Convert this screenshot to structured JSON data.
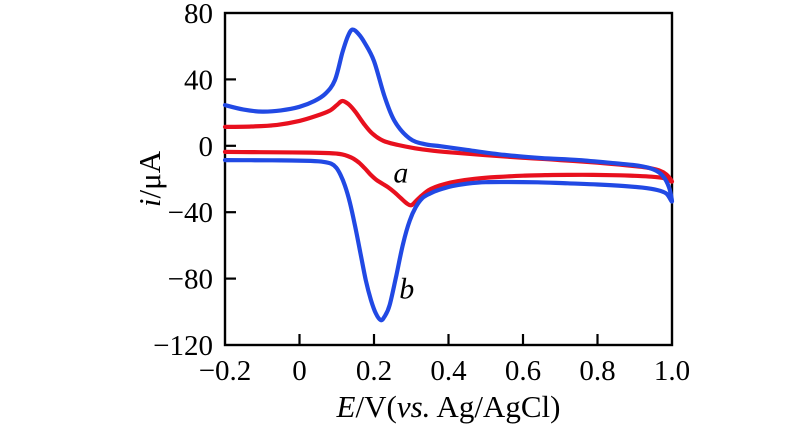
{
  "figure": {
    "background": "#ffffff",
    "frame_color": "#000000"
  },
  "chart_data": {
    "type": "line",
    "subtype": "cyclic-voltammogram",
    "title": "",
    "xlabel": "E/V(vs. Ag/AgCl)",
    "xlabel_parts": [
      {
        "text": "E",
        "italic": true
      },
      {
        "text": "/V(",
        "italic": false
      },
      {
        "text": "vs.",
        "italic": true
      },
      {
        "text": " Ag/AgCl)",
        "italic": false
      }
    ],
    "ylabel": "i/μA",
    "ylabel_parts": [
      {
        "text": "i",
        "italic": true
      },
      {
        "text": "/μA",
        "italic": false
      }
    ],
    "xlim": [
      -0.2,
      1.0
    ],
    "ylim": [
      -120,
      80
    ],
    "grid": false,
    "legend": "none",
    "x_ticks": [
      {
        "v": -0.2,
        "label": "−0.2"
      },
      {
        "v": 0,
        "label": "0"
      },
      {
        "v": 0.2,
        "label": "0.2"
      },
      {
        "v": 0.4,
        "label": "0.4"
      },
      {
        "v": 0.6,
        "label": "0.6"
      },
      {
        "v": 0.8,
        "label": "0.8"
      },
      {
        "v": 1.0,
        "label": "1.0"
      }
    ],
    "y_ticks": [
      {
        "v": 80,
        "label": "80"
      },
      {
        "v": 40,
        "label": "40"
      },
      {
        "v": 0,
        "label": "0"
      },
      {
        "v": -40,
        "label": "−40"
      },
      {
        "v": -80,
        "label": "−80"
      },
      {
        "v": -120,
        "label": "−120"
      }
    ],
    "series": [
      {
        "name": "a",
        "color": "#e8101e",
        "line_width": 4.2,
        "annotation": {
          "text": "a",
          "E": 0.272,
          "i": -16
        },
        "anodic_peak": {
          "E": 0.115,
          "i": 27
        },
        "cathodic_peak": {
          "E": 0.3,
          "i": -36
        },
        "forward": [
          [
            -0.2,
            11.4
          ],
          [
            -0.13,
            11.6
          ],
          [
            -0.06,
            12.6
          ],
          [
            0.0,
            15.0
          ],
          [
            0.045,
            18.0
          ],
          [
            0.08,
            21.0
          ],
          [
            0.1,
            24.5
          ],
          [
            0.115,
            27.0
          ],
          [
            0.132,
            25.0
          ],
          [
            0.15,
            20.5
          ],
          [
            0.172,
            13.5
          ],
          [
            0.195,
            7.5
          ],
          [
            0.225,
            3.0
          ],
          [
            0.265,
            0.5
          ],
          [
            0.31,
            -1.5
          ],
          [
            0.36,
            -3.0
          ],
          [
            0.42,
            -4.2
          ],
          [
            0.5,
            -5.6
          ],
          [
            0.6,
            -7.2
          ],
          [
            0.7,
            -8.6
          ],
          [
            0.8,
            -10.2
          ],
          [
            0.88,
            -11.8
          ],
          [
            0.93,
            -13.0
          ],
          [
            0.965,
            -14.8
          ],
          [
            0.985,
            -17.3
          ],
          [
            1.0,
            -21.5
          ]
        ],
        "reverse": [
          [
            1.0,
            -21.5
          ],
          [
            0.98,
            -19.6
          ],
          [
            0.945,
            -18.6
          ],
          [
            0.9,
            -18.1
          ],
          [
            0.84,
            -17.7
          ],
          [
            0.76,
            -17.5
          ],
          [
            0.68,
            -17.6
          ],
          [
            0.6,
            -18.0
          ],
          [
            0.53,
            -18.8
          ],
          [
            0.47,
            -19.9
          ],
          [
            0.425,
            -21.3
          ],
          [
            0.39,
            -23.0
          ],
          [
            0.365,
            -24.8
          ],
          [
            0.345,
            -27.0
          ],
          [
            0.328,
            -30.0
          ],
          [
            0.313,
            -33.2
          ],
          [
            0.3,
            -35.8
          ],
          [
            0.287,
            -34.5
          ],
          [
            0.272,
            -31.5
          ],
          [
            0.255,
            -28.0
          ],
          [
            0.238,
            -25.0
          ],
          [
            0.22,
            -22.5
          ],
          [
            0.205,
            -20.3
          ],
          [
            0.19,
            -17.2
          ],
          [
            0.175,
            -13.5
          ],
          [
            0.16,
            -10.2
          ],
          [
            0.145,
            -7.8
          ],
          [
            0.13,
            -6.2
          ],
          [
            0.115,
            -5.2
          ],
          [
            0.1,
            -4.7
          ],
          [
            0.08,
            -4.4
          ],
          [
            0.03,
            -4.1
          ],
          [
            -0.06,
            -3.9
          ],
          [
            -0.13,
            -3.8
          ],
          [
            -0.2,
            -3.7
          ]
        ]
      },
      {
        "name": "b",
        "color": "#2149e4",
        "line_width": 4.2,
        "annotation": {
          "text": "b",
          "E": 0.288,
          "i": -86
        },
        "anodic_peak": {
          "E": 0.142,
          "i": 70
        },
        "cathodic_peak": {
          "E": 0.218,
          "i": -105
        },
        "forward": [
          [
            -0.2,
            24.5
          ],
          [
            -0.15,
            21.8
          ],
          [
            -0.1,
            20.6
          ],
          [
            -0.05,
            21.3
          ],
          [
            0.0,
            23.5
          ],
          [
            0.04,
            27.0
          ],
          [
            0.07,
            31.5
          ],
          [
            0.095,
            39.5
          ],
          [
            0.115,
            56.0
          ],
          [
            0.13,
            66.0
          ],
          [
            0.142,
            70.0
          ],
          [
            0.158,
            67.5
          ],
          [
            0.175,
            62.0
          ],
          [
            0.2,
            51.0
          ],
          [
            0.228,
            30.0
          ],
          [
            0.255,
            15.0
          ],
          [
            0.295,
            4.5
          ],
          [
            0.335,
            1.0
          ],
          [
            0.38,
            -0.3
          ],
          [
            0.45,
            -2.5
          ],
          [
            0.55,
            -5.5
          ],
          [
            0.65,
            -7.4
          ],
          [
            0.75,
            -8.6
          ],
          [
            0.85,
            -10.6
          ],
          [
            0.91,
            -12.0
          ],
          [
            0.95,
            -14.2
          ],
          [
            0.975,
            -18.0
          ],
          [
            0.992,
            -25.0
          ],
          [
            1.0,
            -33.5
          ]
        ],
        "reverse": [
          [
            1.0,
            -33.5
          ],
          [
            0.985,
            -28.8
          ],
          [
            0.96,
            -26.6
          ],
          [
            0.92,
            -25.2
          ],
          [
            0.87,
            -24.2
          ],
          [
            0.8,
            -23.3
          ],
          [
            0.72,
            -22.6
          ],
          [
            0.64,
            -22.0
          ],
          [
            0.56,
            -21.8
          ],
          [
            0.5,
            -21.9
          ],
          [
            0.45,
            -22.8
          ],
          [
            0.41,
            -24.3
          ],
          [
            0.375,
            -26.5
          ],
          [
            0.35,
            -28.8
          ],
          [
            0.33,
            -31.5
          ],
          [
            0.312,
            -37.0
          ],
          [
            0.296,
            -45.0
          ],
          [
            0.278,
            -59.0
          ],
          [
            0.26,
            -78.0
          ],
          [
            0.242,
            -96.0
          ],
          [
            0.228,
            -103.0
          ],
          [
            0.218,
            -105.0
          ],
          [
            0.205,
            -101.0
          ],
          [
            0.192,
            -93.0
          ],
          [
            0.178,
            -81.0
          ],
          [
            0.163,
            -64.0
          ],
          [
            0.148,
            -47.0
          ],
          [
            0.135,
            -34.0
          ],
          [
            0.122,
            -24.0
          ],
          [
            0.11,
            -17.5
          ],
          [
            0.098,
            -13.0
          ],
          [
            0.085,
            -10.8
          ],
          [
            0.065,
            -9.7
          ],
          [
            0.03,
            -9.1
          ],
          [
            -0.05,
            -8.8
          ],
          [
            -0.13,
            -8.7
          ],
          [
            -0.2,
            -8.6
          ]
        ]
      }
    ]
  }
}
